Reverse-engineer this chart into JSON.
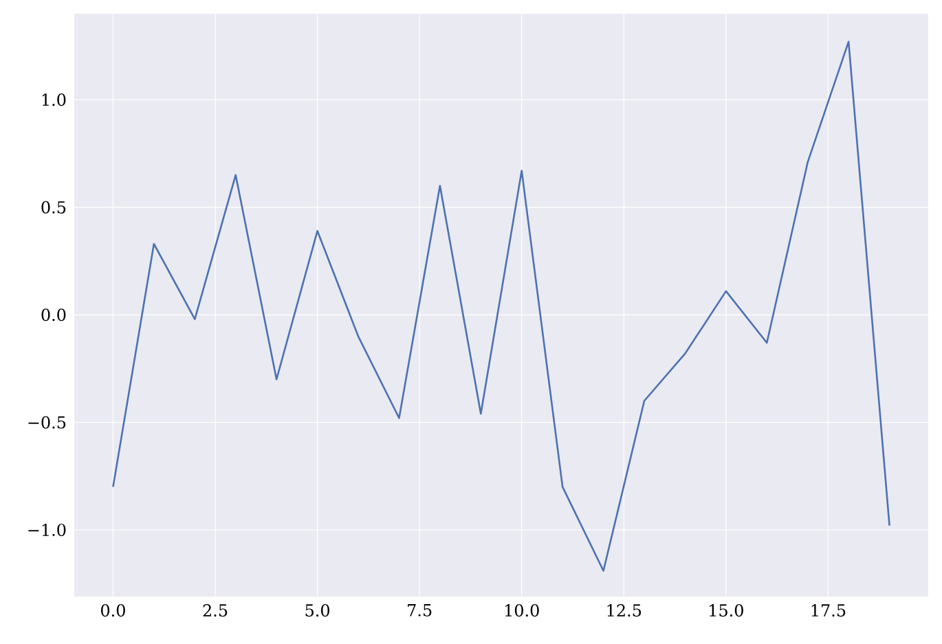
{
  "chart_data": {
    "type": "line",
    "x": [
      0,
      1,
      2,
      3,
      4,
      5,
      6,
      7,
      8,
      9,
      10,
      11,
      12,
      13,
      14,
      15,
      16,
      17,
      18,
      19
    ],
    "values": [
      -0.8,
      0.33,
      -0.02,
      0.65,
      -0.3,
      0.39,
      -0.1,
      -0.48,
      0.6,
      -0.46,
      0.67,
      -0.8,
      -1.19,
      -0.4,
      -0.18,
      0.11,
      -0.13,
      0.71,
      1.27,
      -0.98
    ],
    "color": "#4c72b0",
    "xlim": [
      -0.95,
      19.95
    ],
    "ylim": [
      -1.31,
      1.4
    ],
    "xticks": [
      {
        "value": 0,
        "label": "0.0"
      },
      {
        "value": 2.5,
        "label": "2.5"
      },
      {
        "value": 5,
        "label": "5.0"
      },
      {
        "value": 7.5,
        "label": "7.5"
      },
      {
        "value": 10,
        "label": "10.0"
      },
      {
        "value": 12.5,
        "label": "12.5"
      },
      {
        "value": 15,
        "label": "15.0"
      },
      {
        "value": 17.5,
        "label": "17.5"
      }
    ],
    "yticks": [
      {
        "value": -1,
        "label": "−1.0"
      },
      {
        "value": -0.5,
        "label": "−0.5"
      },
      {
        "value": 0,
        "label": "0.0"
      },
      {
        "value": 0.5,
        "label": "0.5"
      },
      {
        "value": 1,
        "label": "1.0"
      }
    ],
    "grid": true
  }
}
